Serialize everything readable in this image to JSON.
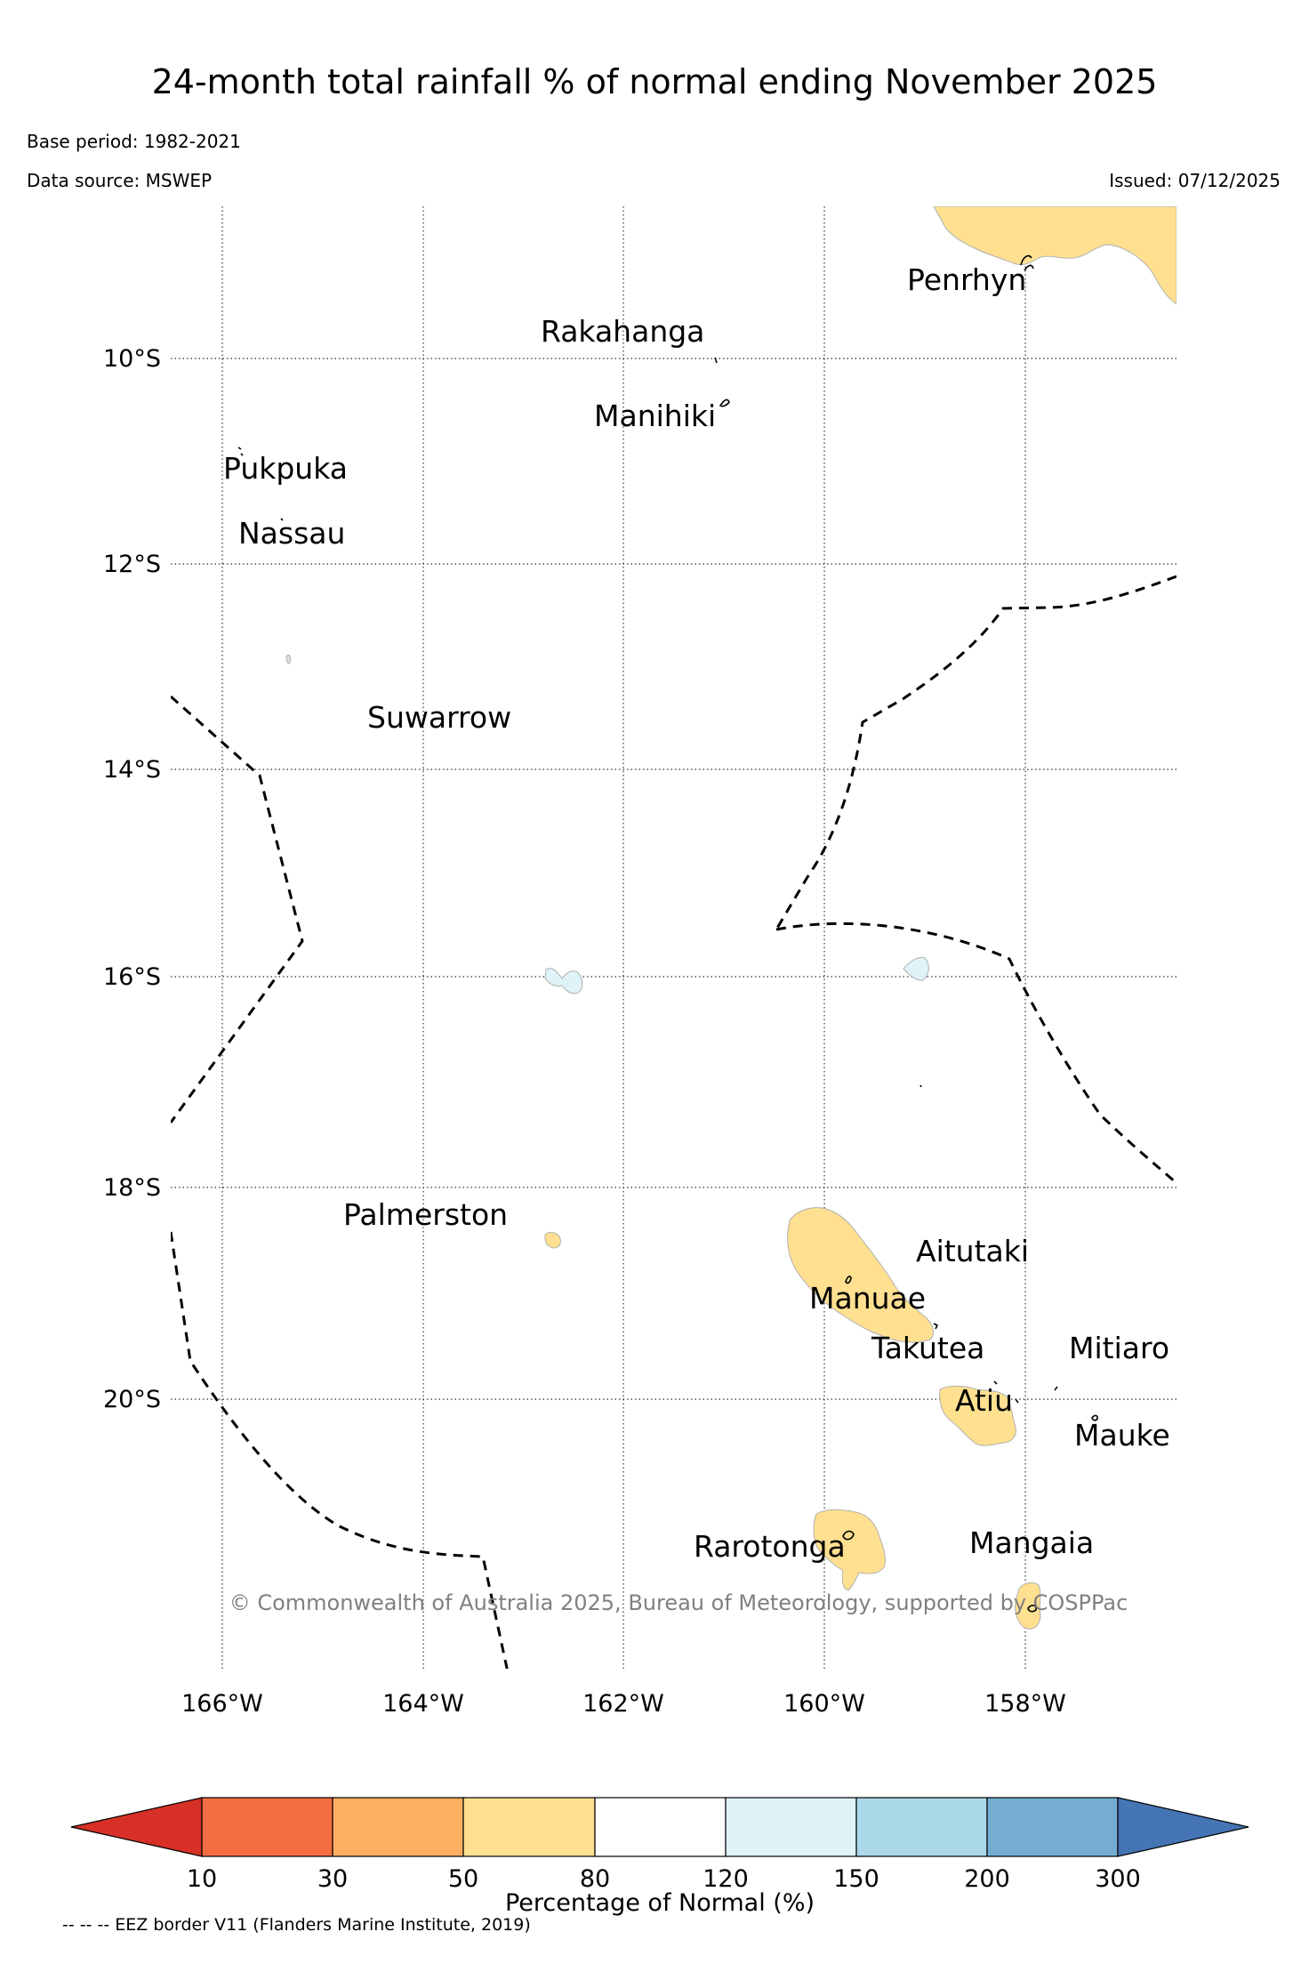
{
  "title": "24-month total rainfall % of normal ending November 2025",
  "base_period": "Base period: 1982-2021",
  "data_source": "Data source: MSWEP",
  "issued": "Issued: 07/12/2025",
  "copyright": "© Commonwealth of Australia 2025, Bureau of Meteorology, supported by COSPPac",
  "footnote": "-- -- -- EEZ border V11 (Flanders Marine Institute, 2019)",
  "axes": {
    "lon_labels": [
      "166°W",
      "164°W",
      "162°W",
      "160°W",
      "158°W"
    ],
    "lat_labels": [
      "10°S",
      "12°S",
      "14°S",
      "16°S",
      "18°S",
      "20°S"
    ]
  },
  "places": [
    "Penrhyn",
    "Rakahanga",
    "Manihiki",
    "Pukpuka",
    "Nassau",
    "Suwarrow",
    "Palmerston",
    "Aitutaki",
    "Manuae",
    "Takutea",
    "Mitiaro",
    "Atiu",
    "Mauke",
    "Rarotonga",
    "Mangaia"
  ],
  "colorbar": {
    "label": "Percentage of Normal (%)",
    "ticks": [
      "10",
      "30",
      "50",
      "80",
      "120",
      "150",
      "200",
      "300"
    ],
    "colors": [
      "#d73027",
      "#f46d43",
      "#fdae61",
      "#fee090",
      "#ffffff",
      "#e0f3f8",
      "#abd9e9",
      "#74add1",
      "#4575b4"
    ]
  },
  "colors": {
    "dry": "#fee090",
    "wet": "#e0f3f8",
    "eez_border": "#000000",
    "copyright_text": "#808080"
  }
}
